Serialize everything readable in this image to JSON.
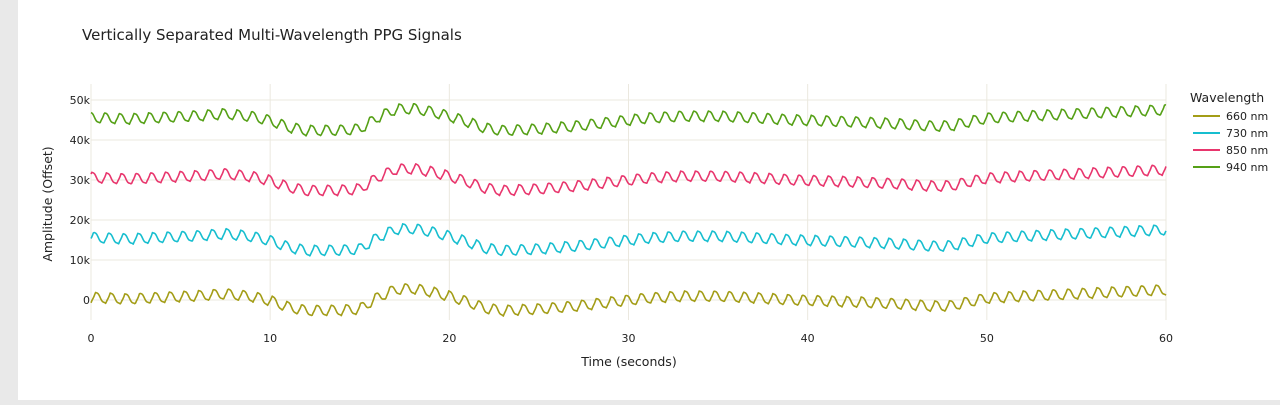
{
  "chart_data": {
    "type": "line",
    "title": "Vertically Separated Multi-Wavelength PPG Signals",
    "xlabel": "Time (seconds)",
    "ylabel": "Amplitude (Offset)",
    "xlim": [
      0,
      60
    ],
    "ylim": [
      -5000,
      54000
    ],
    "x_ticks": [
      {
        "value": 0,
        "label": "0"
      },
      {
        "value": 10,
        "label": "10"
      },
      {
        "value": 20,
        "label": "20"
      },
      {
        "value": 30,
        "label": "30"
      },
      {
        "value": 40,
        "label": "40"
      },
      {
        "value": 50,
        "label": "50"
      },
      {
        "value": 60,
        "label": "60"
      }
    ],
    "y_ticks": [
      {
        "value": 0,
        "label": "0"
      },
      {
        "value": 10000,
        "label": "10k"
      },
      {
        "value": 20000,
        "label": "20k"
      },
      {
        "value": 30000,
        "label": "30k"
      },
      {
        "value": 40000,
        "label": "40k"
      },
      {
        "value": 50000,
        "label": "50k"
      }
    ],
    "grid": true,
    "legend": {
      "title": "Wavelength",
      "position": "right"
    },
    "cardiac_cycles_in_60s": 73,
    "pulse_amplitude": 1600,
    "series": [
      {
        "name": "660 nm",
        "color": "#a39d17",
        "offset": 0
      },
      {
        "name": "730 nm",
        "color": "#17becf",
        "offset": 15000
      },
      {
        "name": "850 nm",
        "color": "#e8366d",
        "offset": 30000
      },
      {
        "name": "940 nm",
        "color": "#55a016",
        "offset": 45000
      }
    ],
    "baseline_trend": {
      "time": [
        0,
        2,
        4,
        6,
        7.5,
        9,
        10,
        11,
        12,
        14,
        15,
        16,
        17,
        18,
        19,
        20,
        21,
        22,
        23,
        25,
        27,
        29,
        31,
        33,
        35,
        37,
        39,
        41,
        43,
        45,
        47,
        48,
        49,
        50,
        52,
        54,
        56,
        58,
        60
      ],
      "value": [
        600,
        200,
        600,
        1000,
        1500,
        800,
        -200,
        -1800,
        -2700,
        -2600,
        -2300,
        600,
        2600,
        2800,
        2000,
        900,
        -500,
        -2100,
        -2700,
        -2300,
        -1600,
        -600,
        400,
        900,
        900,
        500,
        0,
        -300,
        -600,
        -1000,
        -1600,
        -1500,
        -500,
        400,
        900,
        1300,
        1700,
        2100,
        2500
      ]
    }
  }
}
